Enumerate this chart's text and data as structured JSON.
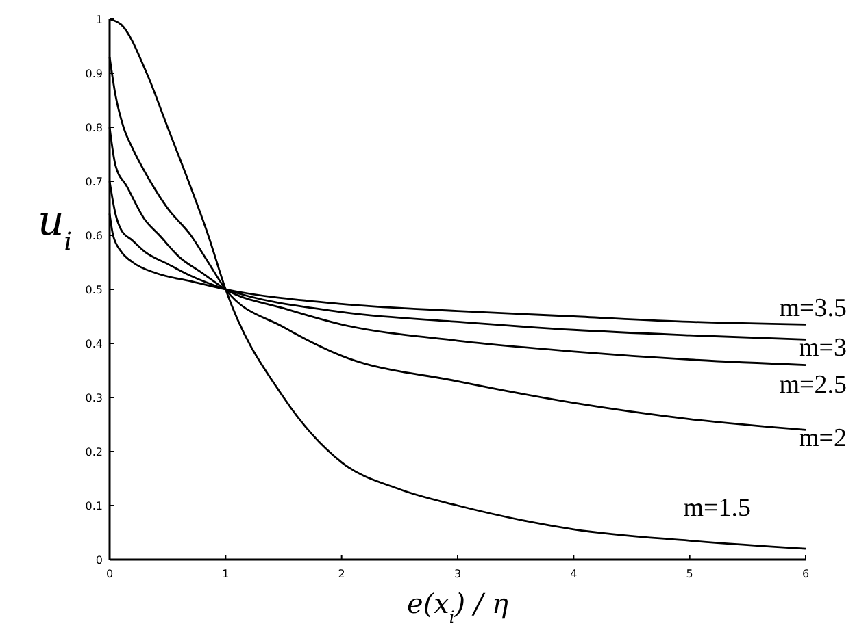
{
  "chart_data": {
    "type": "line",
    "xlabel": "e(x$_{i}$) / η",
    "ylabel": "u$_{i}$",
    "xlim": [
      0,
      6
    ],
    "xticks": [
      0,
      1,
      2,
      3,
      4,
      5,
      6
    ],
    "ylim": [
      0,
      1
    ],
    "yticks": [
      0,
      {
        "value": 0.1,
        "label": "0.1"
      },
      {
        "value": 0.2,
        "label": "0.2"
      },
      {
        "value": 0.3,
        "label": "0.3"
      },
      {
        "value": 0.4,
        "label": "0.4"
      },
      {
        "value": 0.5,
        "label": "0.5"
      },
      {
        "value": 0.6,
        "label": "0.6"
      },
      {
        "value": 0.7,
        "label": "0.7"
      },
      {
        "value": 0.8,
        "label": "0.8"
      },
      {
        "value": 0.9,
        "label": "0.9"
      },
      1
    ],
    "grid": false,
    "marker": "none",
    "line_style": "solid",
    "series": [
      {
        "name": "m=1.5",
        "color": "#000000",
        "x": [
          0,
          0.1,
          0.32,
          0.5,
          0.68,
          0.85,
          1,
          1.5,
          2,
          2.5,
          3,
          4,
          5,
          6
        ],
        "values": [
          1,
          0.99,
          0.9,
          0.8,
          0.7,
          0.6,
          0.5,
          0.3,
          0.18,
          0.13,
          0.1,
          0.056,
          0.035,
          0.02
        ]
      },
      {
        "name": "m=2",
        "color": "#000000",
        "x": [
          0,
          0.05,
          0.12,
          0.2,
          0.35,
          0.5,
          0.7,
          0.85,
          1,
          1.5,
          2,
          3,
          4,
          5,
          6
        ],
        "values": [
          0.93,
          0.86,
          0.8,
          0.76,
          0.7,
          0.65,
          0.6,
          0.55,
          0.5,
          0.43,
          0.377,
          0.33,
          0.29,
          0.26,
          0.24
        ]
      },
      {
        "name": "m=2.5",
        "color": "#000000",
        "x": [
          0,
          0.05,
          0.15,
          0.3,
          0.43,
          0.6,
          0.8,
          1,
          1.5,
          2,
          3,
          4,
          5,
          6
        ],
        "values": [
          0.8,
          0.73,
          0.69,
          0.63,
          0.6,
          0.56,
          0.53,
          0.5,
          0.465,
          0.435,
          0.405,
          0.385,
          0.37,
          0.36
        ]
      },
      {
        "name": "m=3",
        "color": "#000000",
        "x": [
          0,
          0.05,
          0.1,
          0.2,
          0.3,
          0.5,
          0.7,
          1,
          2,
          3,
          4,
          5,
          6
        ],
        "values": [
          0.7,
          0.64,
          0.61,
          0.59,
          0.57,
          0.547,
          0.525,
          0.5,
          0.458,
          0.44,
          0.425,
          0.415,
          0.407
        ]
      },
      {
        "name": "m=3.5",
        "color": "#000000",
        "x": [
          0,
          0.03,
          0.1,
          0.2,
          0.4,
          0.7,
          1,
          2,
          3,
          4,
          5,
          6
        ],
        "values": [
          0.64,
          0.6,
          0.57,
          0.55,
          0.53,
          0.515,
          0.5,
          0.473,
          0.46,
          0.45,
          0.44,
          0.435
        ]
      }
    ]
  }
}
